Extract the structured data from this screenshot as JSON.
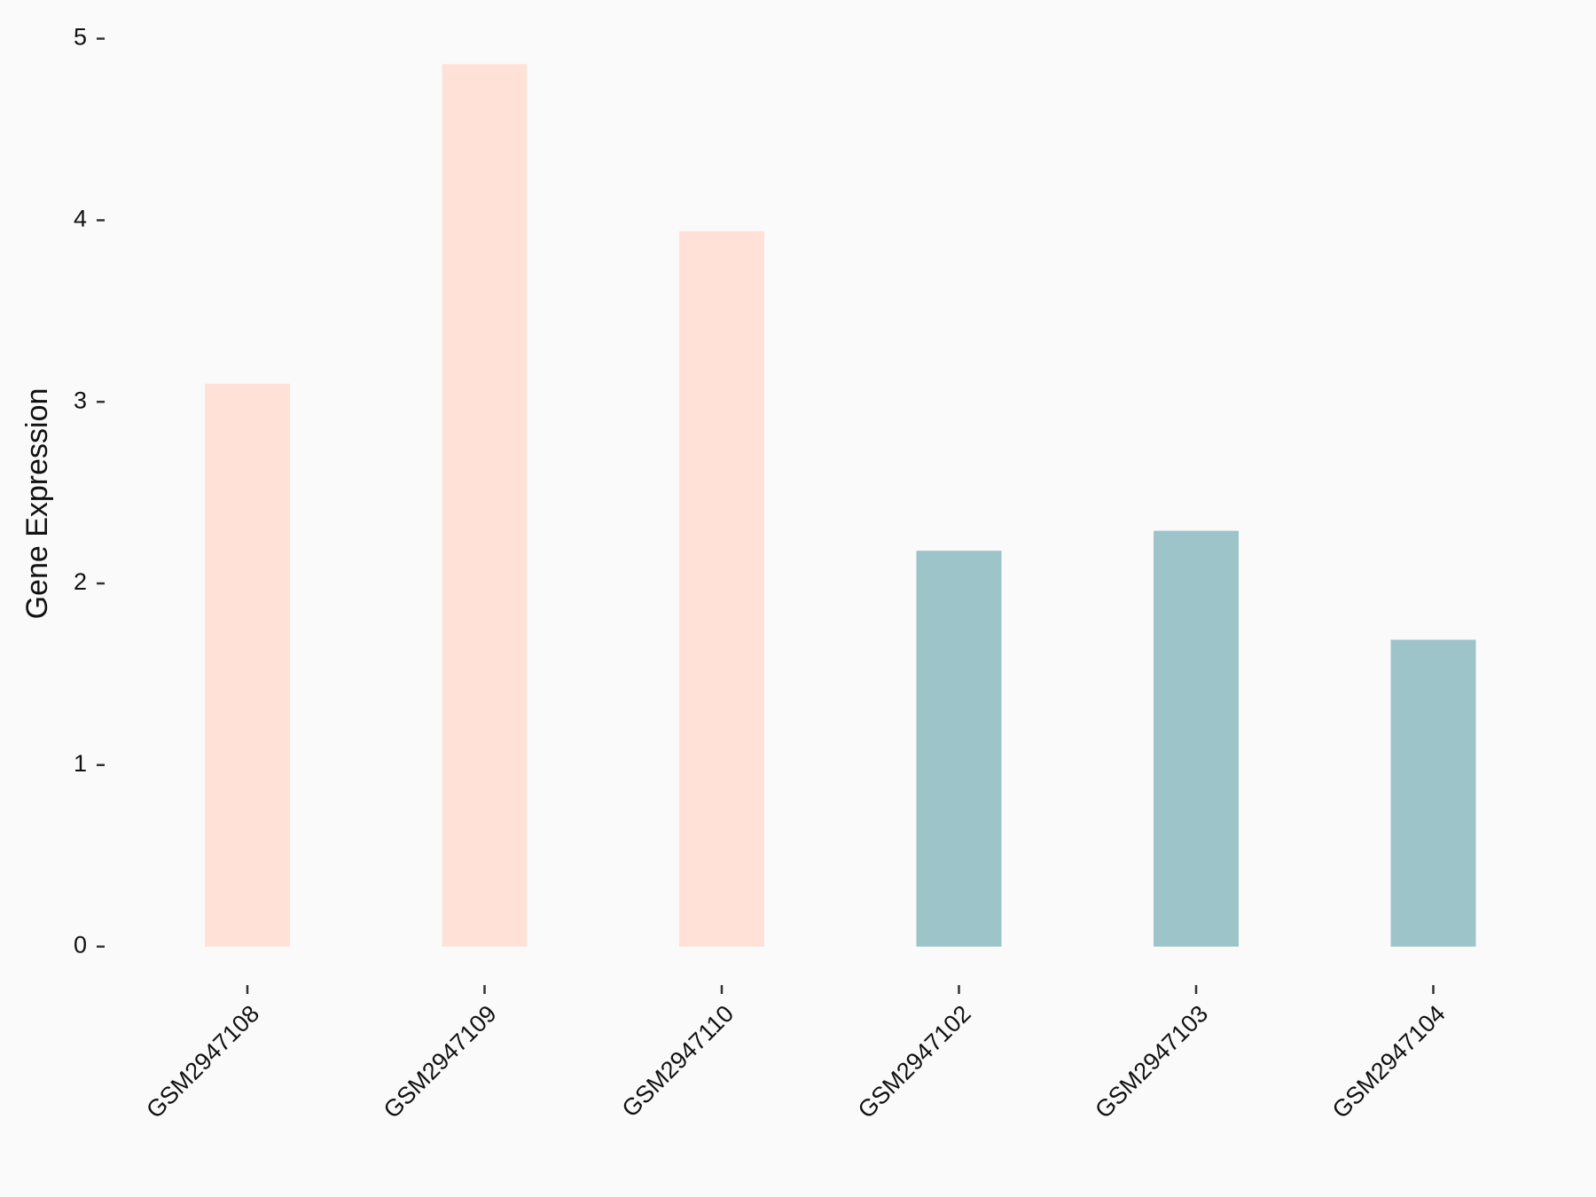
{
  "chart_data": {
    "type": "bar",
    "y_label": "Gene Expression",
    "categories": [
      "GSM2947108",
      "GSM2947109",
      "GSM2947110",
      "GSM2947102",
      "GSM2947103",
      "GSM2947104"
    ],
    "values": [
      3.1,
      4.86,
      3.94,
      2.18,
      2.29,
      1.69
    ],
    "colors": [
      "#ffe1d8",
      "#ffe1d8",
      "#ffe1d8",
      "#9dc4c8",
      "#9dc4c8",
      "#9dc4c8"
    ],
    "ylim": [
      0,
      5
    ],
    "yticks": [
      0,
      1,
      2,
      3,
      4,
      5
    ]
  }
}
